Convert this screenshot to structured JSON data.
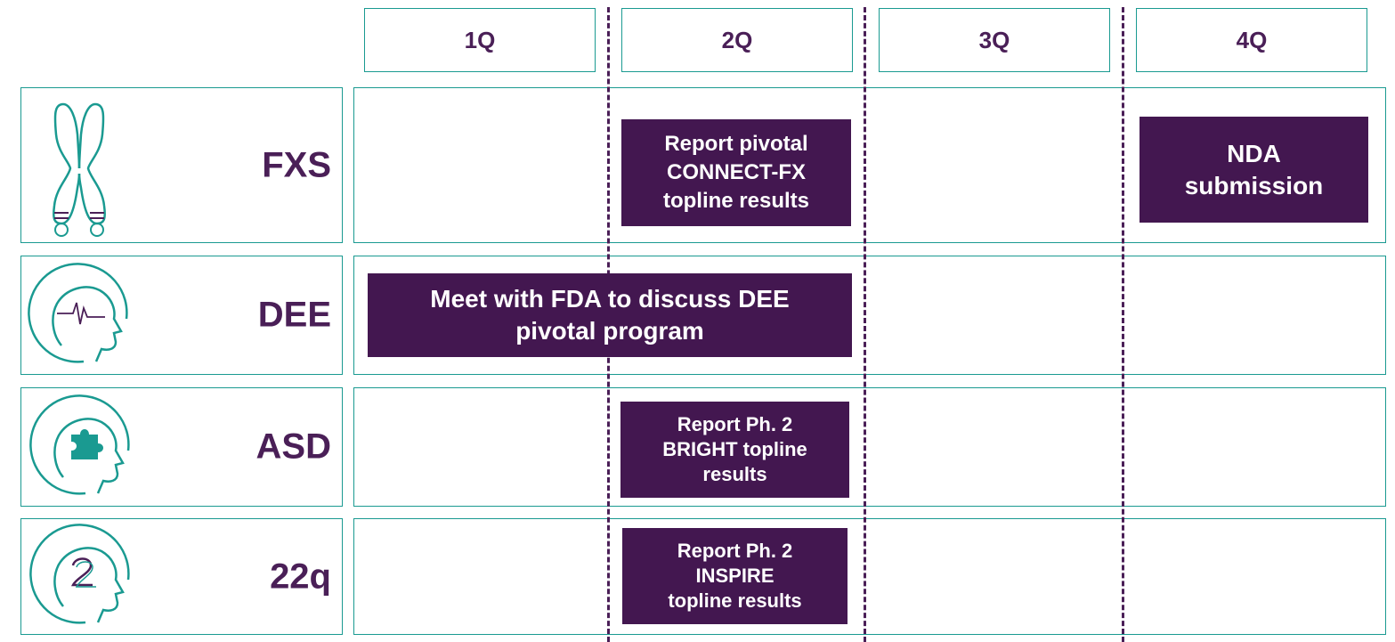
{
  "quarters": [
    "1Q",
    "2Q",
    "3Q",
    "4Q"
  ],
  "rows": [
    {
      "label": "FXS",
      "icon": "chromosome-icon"
    },
    {
      "label": "DEE",
      "icon": "head-brainwave-icon"
    },
    {
      "label": "ASD",
      "icon": "head-puzzle-icon"
    },
    {
      "label": "22q",
      "icon": "head-22-icon"
    }
  ],
  "milestones": {
    "fxs_2q": "Report pivotal\nCONNECT-FX\ntopline results",
    "fxs_4q": "NDA\nsubmission",
    "dee_1q_2q": "Meet with FDA to discuss DEE\npivotal program",
    "asd_2q": "Report Ph. 2\nBRIGHT topline\nresults",
    "q22_2q": "Report Ph. 2\nINSPIRE\ntopline results"
  },
  "colors": {
    "teal": "#1a9a91",
    "purple": "#431750",
    "label_purple": "#4a1f57"
  }
}
